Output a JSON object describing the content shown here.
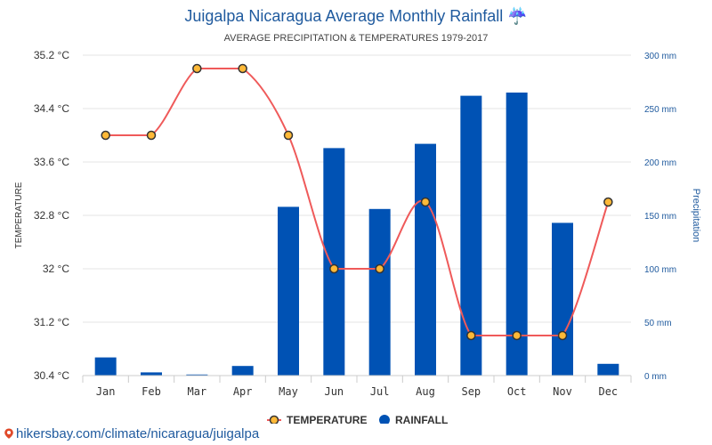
{
  "chart_data": {
    "type": "bar+line",
    "title": "Juigalpa Nicaragua Average Monthly Rainfall ☔",
    "subtitle": "AVERAGE PRECIPITATION & TEMPERATURES 1979-2017",
    "categories": [
      "Jan",
      "Feb",
      "Mar",
      "Apr",
      "May",
      "Jun",
      "Jul",
      "Aug",
      "Sep",
      "Oct",
      "Nov",
      "Dec"
    ],
    "series": [
      {
        "name": "RAINFALL",
        "type": "bar",
        "axis": "right",
        "color": "#0052b4",
        "values": [
          17,
          3,
          1,
          9,
          158,
          213,
          156,
          217,
          262,
          265,
          143,
          11
        ]
      },
      {
        "name": "TEMPERATURE",
        "type": "line",
        "axis": "left",
        "color": "#ef5a5a",
        "marker_fill": "#ffb937",
        "values": [
          34.0,
          34.0,
          35.0,
          35.0,
          34.0,
          32.0,
          32.0,
          33.0,
          31.0,
          31.0,
          31.0,
          33.0
        ]
      }
    ],
    "y_left": {
      "label": "TEMPERATURE",
      "ylim": [
        30.4,
        35.2
      ],
      "ticks": [
        "35.2 °C",
        "34.4 °C",
        "33.6 °C",
        "32.8 °C",
        "32 °C",
        "31.2 °C",
        "30.4 °C"
      ],
      "tick_values": [
        35.2,
        34.4,
        33.6,
        32.8,
        32.0,
        31.2,
        30.4
      ]
    },
    "y_right": {
      "label": "Precipitation",
      "ylim": [
        0,
        300
      ],
      "ticks": [
        "300 mm",
        "250 mm",
        "200 mm",
        "150 mm",
        "100 mm",
        "50 mm",
        "0 mm"
      ],
      "tick_values": [
        300,
        250,
        200,
        150,
        100,
        50,
        0
      ]
    },
    "grid": true,
    "legend": {
      "position": "bottom-center",
      "items": [
        "TEMPERATURE",
        "RAINFALL"
      ]
    }
  },
  "footer": {
    "link_text": "hikersbay.com/climate/nicaragua/juigalpa"
  }
}
